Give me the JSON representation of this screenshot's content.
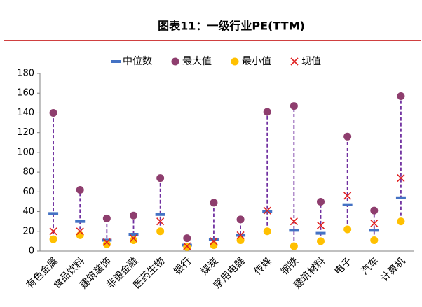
{
  "chart_data": {
    "type": "range-dot",
    "title": "图表11：一级行业PE(TTM)",
    "categories": [
      "有色金属",
      "食品饮料",
      "建筑装饰",
      "非银金融",
      "医药生物",
      "银行",
      "煤炭",
      "家用电器",
      "传媒",
      "钢铁",
      "建筑材料",
      "电子",
      "汽车",
      "计算机"
    ],
    "series": [
      {
        "name": "中位数",
        "color": "#4472c4",
        "marker": "dash",
        "values": [
          38,
          30,
          11,
          17,
          37,
          6,
          12,
          16,
          40,
          21,
          18,
          47,
          21,
          54
        ]
      },
      {
        "name": "最大值",
        "color": "#8e3e6e",
        "marker": "circle",
        "values": [
          140,
          62,
          33,
          36,
          74,
          13,
          49,
          32,
          141,
          147,
          50,
          116,
          41,
          157
        ]
      },
      {
        "name": "最小值",
        "color": "#ffc000",
        "marker": "circle",
        "values": [
          12,
          16,
          7,
          11,
          20,
          4,
          6,
          11,
          20,
          5,
          10,
          22,
          11,
          30
        ]
      },
      {
        "name": "现值",
        "color": "#e02020",
        "marker": "x",
        "values": [
          20,
          20,
          9,
          13,
          30,
          5,
          10,
          16,
          41,
          30,
          26,
          56,
          28,
          74
        ]
      }
    ],
    "range_color": "#7030a0",
    "ylim": [
      0,
      180
    ],
    "yticks": [
      0,
      20,
      40,
      60,
      80,
      100,
      120,
      140,
      160,
      180
    ],
    "legend": "top"
  }
}
